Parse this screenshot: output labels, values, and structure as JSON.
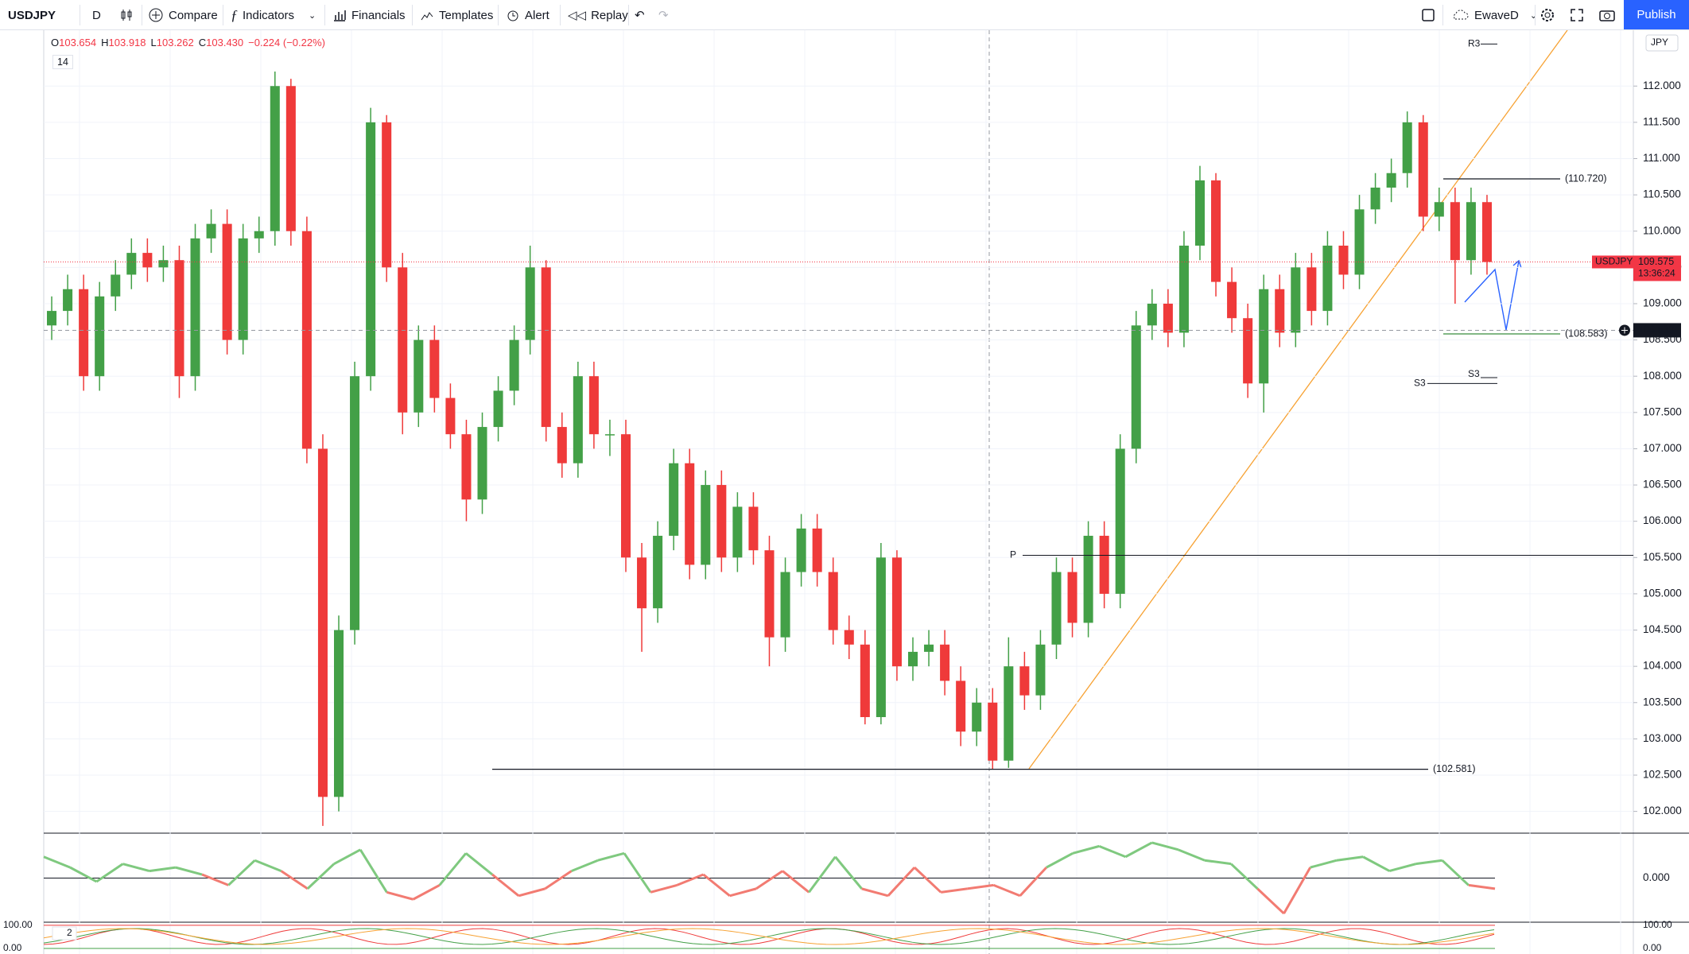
{
  "toolbar": {
    "symbol": "USDJPY",
    "interval": "D",
    "compare": "Compare",
    "indicators": "Indicators",
    "financials": "Financials",
    "templates": "Templates",
    "alert": "Alert",
    "replay": "Replay",
    "layout": "EwaveD",
    "publish": "Publish"
  },
  "ohlc": [
    {
      "key": "O",
      "value": "103.654"
    },
    {
      "key": "H",
      "value": "103.918"
    },
    {
      "key": "L",
      "value": "103.262"
    },
    {
      "key": "C",
      "value": "103.430"
    }
  ],
  "change": "−0.224 (−0.22%)",
  "legend": {
    "length": 14
  },
  "currency": "JPY",
  "chart_data": {
    "type": "candlestick",
    "open": [
      108.7,
      108.9,
      109.2,
      108.0,
      109.1,
      109.4,
      109.7,
      109.5,
      109.6,
      108.0,
      109.9,
      110.1,
      108.5,
      109.9,
      110.0,
      112.0,
      110.0,
      107.0,
      102.2,
      104.5,
      108.0,
      111.5,
      109.5,
      107.5,
      108.5,
      107.7,
      107.2,
      106.3,
      107.3,
      107.8,
      108.5,
      109.5,
      107.3,
      106.8,
      108.0,
      107.2,
      107.2,
      105.5,
      104.8,
      105.8,
      106.8,
      105.4,
      106.5,
      105.5,
      106.2,
      105.6,
      104.4,
      105.3,
      105.9,
      105.3,
      104.5,
      104.3,
      103.3,
      105.5,
      104.0,
      104.2,
      104.3,
      103.8,
      103.1,
      103.5,
      102.7,
      104.0,
      103.6,
      104.3,
      105.3,
      104.6,
      105.8,
      105.0,
      107.0,
      108.7,
      109.0,
      108.6,
      109.8,
      110.7,
      109.3,
      108.8,
      107.9,
      109.2,
      108.6,
      109.5,
      108.9,
      109.8,
      109.4,
      110.3,
      110.6,
      110.8,
      111.5,
      110.2,
      110.4,
      109.6,
      110.4
    ],
    "high": [
      109.1,
      109.4,
      109.4,
      109.3,
      109.6,
      109.9,
      109.9,
      109.8,
      109.8,
      110.1,
      110.3,
      110.3,
      110.1,
      110.2,
      112.2,
      112.1,
      110.2,
      107.2,
      104.7,
      108.2,
      111.7,
      111.6,
      109.7,
      108.7,
      108.7,
      107.9,
      107.4,
      107.5,
      108.0,
      108.7,
      109.8,
      109.6,
      107.5,
      108.2,
      108.2,
      107.4,
      107.4,
      105.7,
      106.0,
      107.0,
      107.0,
      106.7,
      106.7,
      106.4,
      106.4,
      105.8,
      105.5,
      106.1,
      106.1,
      105.5,
      104.7,
      104.5,
      105.7,
      105.6,
      104.4,
      104.5,
      104.5,
      104.0,
      103.7,
      103.7,
      104.4,
      104.2,
      104.5,
      105.5,
      105.5,
      106.0,
      106.0,
      107.2,
      108.9,
      109.2,
      109.2,
      110.0,
      110.9,
      110.8,
      109.5,
      109.0,
      109.4,
      109.4,
      109.7,
      109.7,
      110.0,
      110.0,
      110.5,
      110.8,
      111.0,
      111.65,
      111.6,
      110.6,
      110.6,
      110.6,
      110.5
    ],
    "low": [
      108.5,
      108.7,
      107.8,
      107.8,
      108.9,
      109.2,
      109.3,
      109.3,
      107.7,
      107.8,
      109.7,
      108.3,
      108.3,
      109.7,
      109.8,
      109.8,
      106.8,
      101.8,
      102.0,
      104.3,
      107.8,
      109.3,
      107.2,
      107.3,
      107.5,
      107.0,
      106.0,
      106.1,
      107.1,
      107.6,
      108.3,
      107.1,
      106.6,
      106.6,
      107.0,
      106.9,
      105.3,
      104.2,
      104.6,
      105.6,
      105.2,
      105.2,
      105.3,
      105.3,
      105.4,
      104.0,
      104.2,
      105.1,
      105.1,
      104.3,
      104.1,
      103.2,
      103.2,
      103.8,
      103.8,
      104.0,
      103.6,
      102.9,
      102.9,
      102.581,
      102.6,
      103.4,
      103.4,
      104.1,
      104.4,
      104.4,
      104.8,
      104.8,
      106.8,
      108.5,
      108.4,
      108.4,
      109.6,
      109.1,
      108.6,
      107.7,
      107.5,
      108.4,
      108.4,
      108.7,
      108.7,
      109.2,
      109.2,
      110.1,
      110.4,
      110.6,
      110.0,
      110.0,
      109.0,
      109.4,
      109.4
    ],
    "close": [
      108.9,
      109.2,
      108.0,
      109.1,
      109.4,
      109.7,
      109.5,
      109.6,
      108.0,
      109.9,
      110.1,
      108.5,
      109.9,
      110.0,
      112.0,
      110.0,
      107.0,
      102.2,
      104.5,
      108.0,
      111.5,
      109.5,
      107.5,
      108.5,
      107.7,
      107.2,
      106.3,
      107.3,
      107.8,
      108.5,
      109.5,
      107.3,
      106.8,
      108.0,
      107.2,
      107.2,
      105.5,
      104.8,
      105.8,
      106.8,
      105.4,
      106.5,
      105.5,
      106.2,
      105.6,
      104.4,
      105.3,
      105.9,
      105.3,
      104.5,
      104.3,
      103.3,
      105.5,
      104.0,
      104.2,
      104.3,
      103.8,
      103.1,
      103.5,
      102.7,
      104.0,
      103.6,
      104.3,
      105.3,
      104.6,
      105.8,
      105.0,
      107.0,
      108.7,
      109.0,
      108.6,
      109.8,
      110.7,
      109.3,
      108.8,
      107.9,
      109.2,
      108.6,
      109.5,
      108.9,
      109.8,
      109.4,
      110.3,
      110.6,
      110.8,
      111.5,
      110.2,
      110.4,
      109.6,
      110.4,
      109.575
    ],
    "up_color": "#43a047",
    "down_color": "#ef3a3a",
    "ylim": [
      101.7,
      112.77
    ],
    "yticks": [
      {
        "value": 102,
        "label": "102.000"
      },
      {
        "value": 102.5,
        "label": "102.500"
      },
      {
        "value": 103,
        "label": "103.000"
      },
      {
        "value": 103.5,
        "label": "103.500"
      },
      {
        "value": 104,
        "label": "104.000"
      },
      {
        "value": 104.5,
        "label": "104.500"
      },
      {
        "value": 105,
        "label": "105.000"
      },
      {
        "value": 105.5,
        "label": "105.500"
      },
      {
        "value": 106,
        "label": "106.000"
      },
      {
        "value": 106.5,
        "label": "106.500"
      },
      {
        "value": 107,
        "label": "107.000"
      },
      {
        "value": 107.5,
        "label": "107.500"
      },
      {
        "value": 108,
        "label": "108.000"
      },
      {
        "value": 108.5,
        "label": "108.500"
      },
      {
        "value": 109,
        "label": "109.000"
      },
      {
        "value": 109.5,
        "label": "109.500"
      },
      {
        "value": 110,
        "label": "110.000"
      },
      {
        "value": 110.5,
        "label": "110.500"
      },
      {
        "value": 111,
        "label": "111.000"
      },
      {
        "value": 111.5,
        "label": "111.500"
      },
      {
        "value": 112,
        "label": "112.000"
      }
    ],
    "grid": true,
    "levels": [
      {
        "label": "(110.720)",
        "value": 110.72,
        "color": "#131722"
      },
      {
        "label": "(108.583)",
        "value": 108.583,
        "color": "#388e3c"
      },
      {
        "label": "(102.581)",
        "value": 102.581,
        "color": "#131722"
      }
    ],
    "pivots": [
      {
        "label": "R3",
        "value": 112.58
      },
      {
        "label": "S3",
        "value": 107.98
      },
      {
        "label": "S3",
        "value": 107.9
      },
      {
        "label": "P",
        "value": 105.53
      }
    ],
    "last_price": {
      "symbol": "USDJPY",
      "value": 109.575,
      "countdown": "13:36:24",
      "color": "#f23645"
    },
    "crosshair": {
      "value": 108.633
    },
    "oscillator": {
      "values": [
        0.6,
        0.3,
        -0.1,
        0.4,
        0.2,
        0.3,
        0.1,
        -0.2,
        0.5,
        0.2,
        -0.3,
        0.4,
        0.8,
        -0.4,
        -0.6,
        -0.2,
        0.7,
        0.1,
        -0.5,
        -0.3,
        0.2,
        0.5,
        0.7,
        -0.4,
        -0.2,
        0.1,
        -0.5,
        -0.3,
        0.2,
        -0.4,
        0.6,
        -0.3,
        -0.5,
        0.3,
        -0.4,
        -0.3,
        -0.2,
        -0.5,
        0.3,
        0.7,
        0.9,
        0.6,
        1.0,
        0.8,
        0.5,
        0.4,
        -0.3,
        -1.0,
        0.3,
        0.5,
        0.6,
        0.2,
        0.4,
        0.5,
        -0.2,
        -0.3
      ],
      "ylim": [
        -1.2,
        1.2
      ],
      "yticks": [
        {
          "value": 0,
          "label": "0.000"
        }
      ],
      "pos_color": "#7fc97f",
      "neg_color": "#f27b72"
    },
    "stoch": {
      "label": "2",
      "ylim": [
        -24,
        110
      ],
      "yticks": [
        {
          "value": 100,
          "label": "100.00"
        },
        {
          "value": 0,
          "label": "0.00"
        }
      ]
    }
  }
}
